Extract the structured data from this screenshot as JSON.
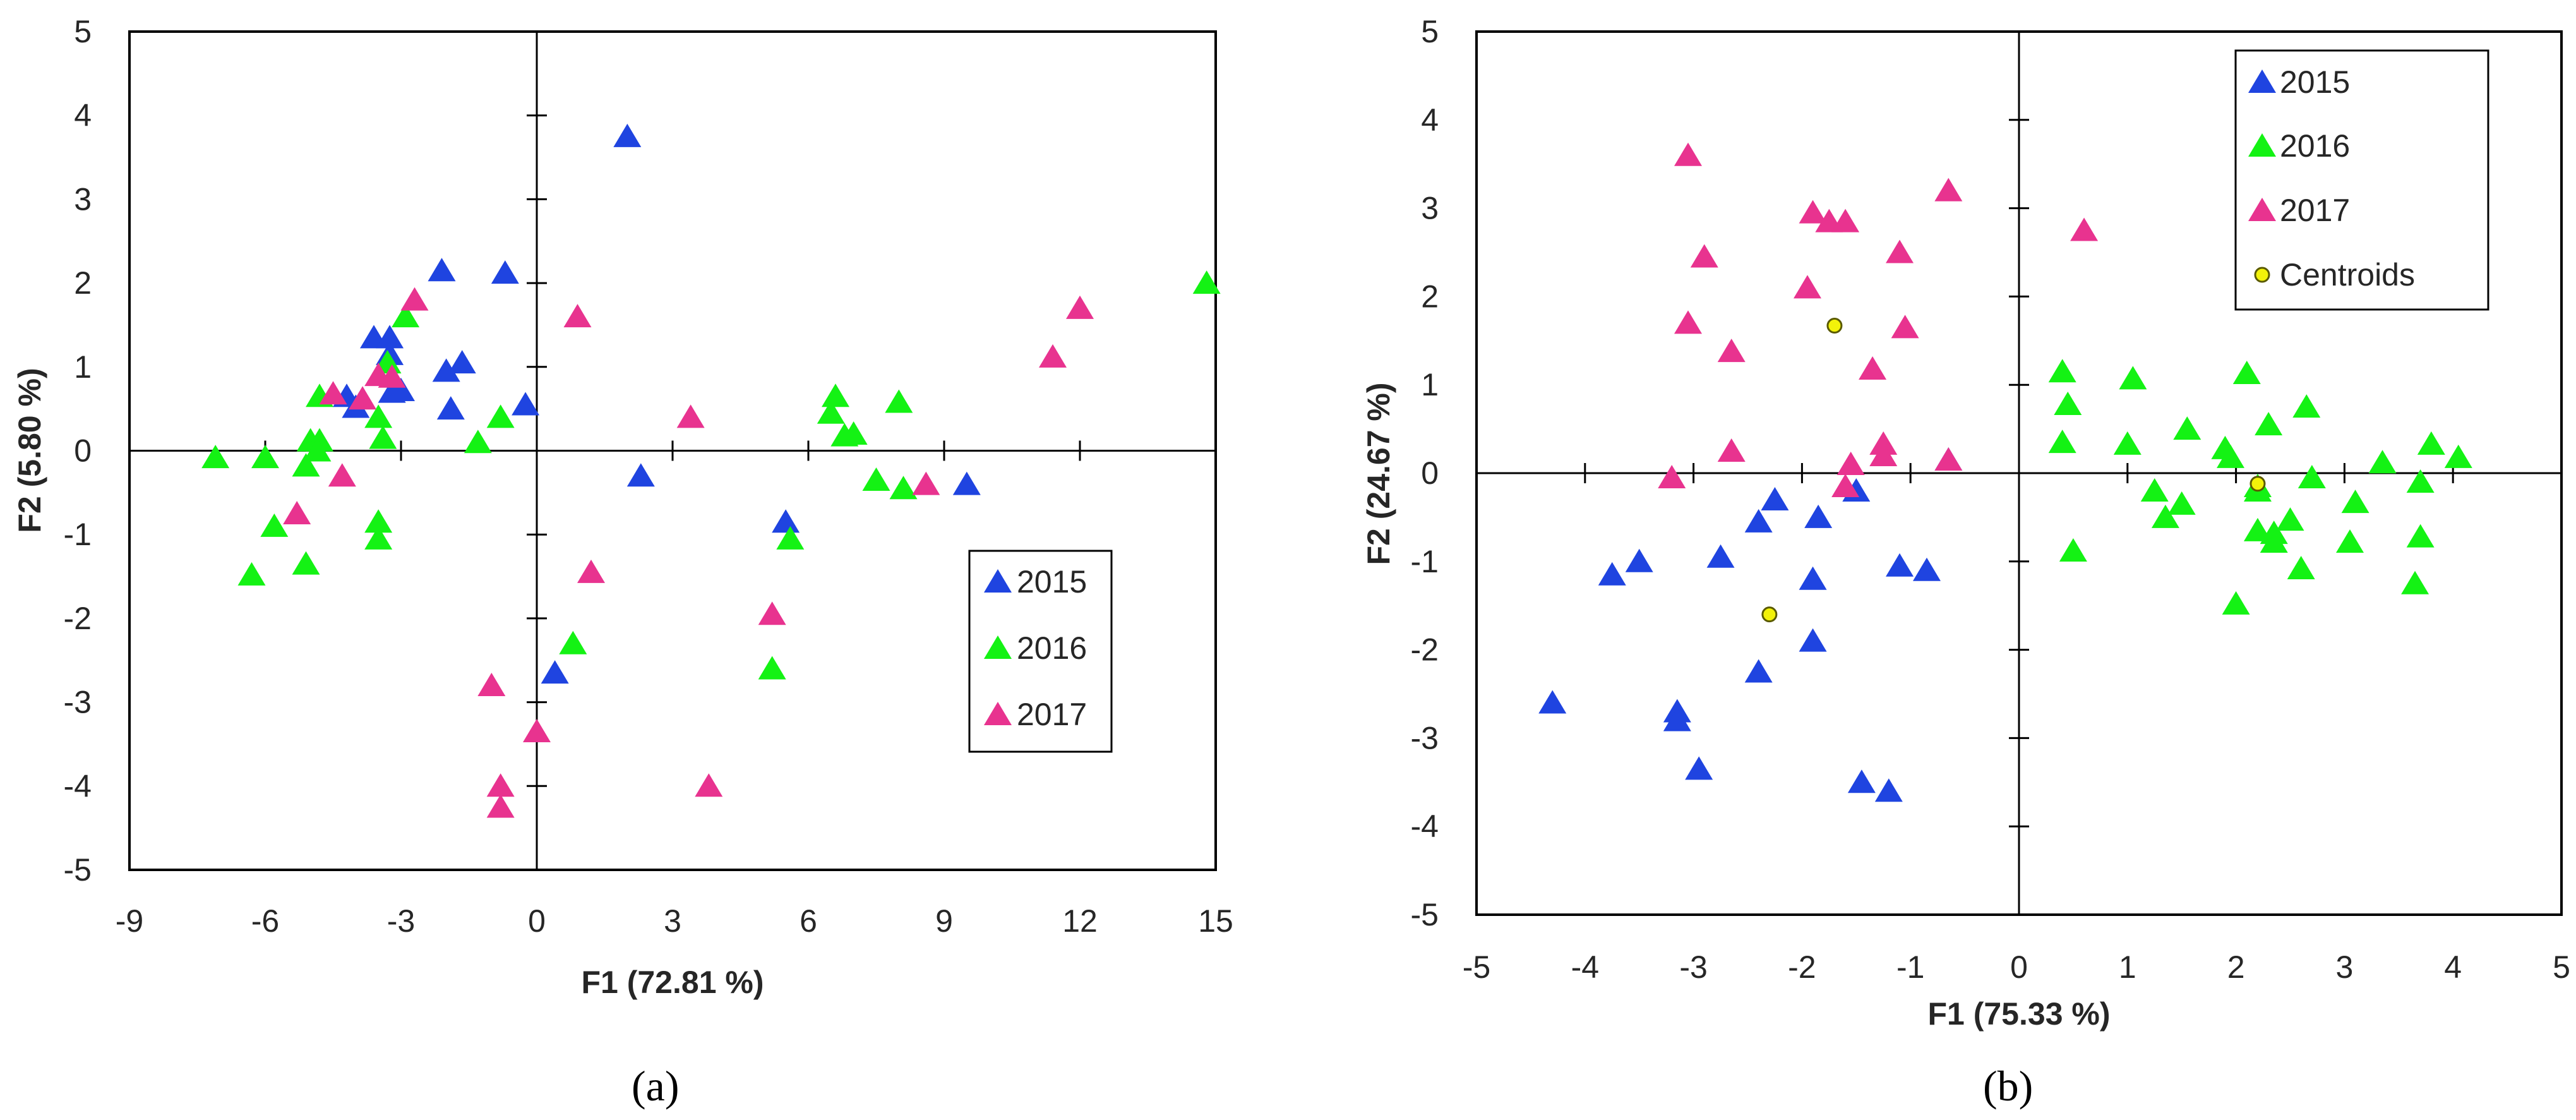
{
  "colors": {
    "2015": "#1f44e0",
    "2016": "#14f214",
    "2017": "#e8338f",
    "centroid_fill": "#f2f20a",
    "centroid_stroke": "#5a5a00"
  },
  "chart_data": [
    {
      "type": "scatter",
      "panel_label": "(a)",
      "xlabel": "F1 (72.81 %)",
      "ylabel": "F2 (5.80 %)",
      "xlim": [
        -9,
        15
      ],
      "ylim": [
        -5,
        5
      ],
      "xticks": [
        -9,
        -6,
        -3,
        0,
        3,
        6,
        9,
        12,
        15
      ],
      "yticks": [
        -5,
        -4,
        -3,
        -2,
        -1,
        0,
        1,
        2,
        3,
        4,
        5
      ],
      "legend_position": "bottom-right",
      "series": [
        {
          "name": "2015",
          "color_key": "2015",
          "marker": "triangle",
          "points": [
            [
              2.0,
              3.75
            ],
            [
              -2.1,
              2.15
            ],
            [
              -0.7,
              2.12
            ],
            [
              -3.6,
              1.35
            ],
            [
              -3.25,
              1.35
            ],
            [
              -3.25,
              1.15
            ],
            [
              -1.65,
              1.05
            ],
            [
              -2.0,
              0.95
            ],
            [
              -3.2,
              0.7
            ],
            [
              -3.0,
              0.72
            ],
            [
              -4.2,
              0.65
            ],
            [
              -4.0,
              0.52
            ],
            [
              -1.9,
              0.5
            ],
            [
              -0.25,
              0.55
            ],
            [
              2.3,
              -0.3
            ],
            [
              9.5,
              -0.4
            ],
            [
              5.5,
              -0.85
            ],
            [
              0.4,
              -2.65
            ]
          ]
        },
        {
          "name": "2016",
          "color_key": "2016",
          "marker": "triangle",
          "points": [
            [
              14.8,
              2.0
            ],
            [
              -2.9,
              1.6
            ],
            [
              -3.3,
              1.05
            ],
            [
              -4.8,
              0.65
            ],
            [
              -3.5,
              0.4
            ],
            [
              -0.8,
              0.4
            ],
            [
              -5.0,
              0.12
            ],
            [
              -4.8,
              0.12
            ],
            [
              -3.4,
              0.15
            ],
            [
              -1.3,
              0.1
            ],
            [
              -4.85,
              0.0
            ],
            [
              -7.1,
              -0.08
            ],
            [
              -6.0,
              -0.08
            ],
            [
              -5.1,
              -0.18
            ],
            [
              6.6,
              0.65
            ],
            [
              6.5,
              0.45
            ],
            [
              8.0,
              0.58
            ],
            [
              6.8,
              0.18
            ],
            [
              7.0,
              0.2
            ],
            [
              7.5,
              -0.35
            ],
            [
              8.1,
              -0.45
            ],
            [
              -5.8,
              -0.9
            ],
            [
              -3.5,
              -0.85
            ],
            [
              -3.5,
              -1.05
            ],
            [
              -5.1,
              -1.35
            ],
            [
              -6.3,
              -1.48
            ],
            [
              5.6,
              -1.05
            ],
            [
              0.8,
              -2.3
            ],
            [
              5.2,
              -2.6
            ]
          ]
        },
        {
          "name": "2017",
          "color_key": "2017",
          "marker": "triangle",
          "points": [
            [
              12.0,
              1.7
            ],
            [
              11.4,
              1.12
            ],
            [
              -2.7,
              1.8
            ],
            [
              0.9,
              1.6
            ],
            [
              -3.5,
              0.9
            ],
            [
              -3.2,
              0.88
            ],
            [
              -4.5,
              0.68
            ],
            [
              -3.85,
              0.62
            ],
            [
              3.4,
              0.4
            ],
            [
              -4.3,
              -0.3
            ],
            [
              8.6,
              -0.4
            ],
            [
              -5.3,
              -0.75
            ],
            [
              1.2,
              -1.45
            ],
            [
              5.2,
              -1.95
            ],
            [
              -1.0,
              -2.8
            ],
            [
              0.0,
              -3.35
            ],
            [
              -0.8,
              -4.0
            ],
            [
              3.8,
              -4.0
            ],
            [
              -0.8,
              -4.25
            ]
          ]
        }
      ]
    },
    {
      "type": "scatter",
      "panel_label": "(b)",
      "xlabel": "F1 (75.33 %)",
      "ylabel": "F2 (24.67 %)",
      "xlim": [
        -5,
        5
      ],
      "ylim": [
        -5,
        5
      ],
      "xticks": [
        -5,
        -4,
        -3,
        -2,
        -1,
        0,
        1,
        2,
        3,
        4,
        5
      ],
      "yticks": [
        -5,
        -4,
        -3,
        -2,
        -1,
        0,
        1,
        2,
        3,
        4,
        5
      ],
      "legend_position": "top-right",
      "series": [
        {
          "name": "2015",
          "color_key": "2015",
          "marker": "triangle",
          "points": [
            [
              -0.65,
              0.15
            ],
            [
              -1.5,
              -0.2
            ],
            [
              -2.25,
              -0.3
            ],
            [
              -2.4,
              -0.55
            ],
            [
              -1.85,
              -0.5
            ],
            [
              -2.75,
              -0.95
            ],
            [
              -3.5,
              -1.0
            ],
            [
              -3.75,
              -1.15
            ],
            [
              -1.1,
              -1.05
            ],
            [
              -0.85,
              -1.1
            ],
            [
              -1.9,
              -1.2
            ],
            [
              -1.9,
              -1.9
            ],
            [
              -2.4,
              -2.25
            ],
            [
              -4.3,
              -2.6
            ],
            [
              -3.15,
              -2.7
            ],
            [
              -3.15,
              -2.8
            ],
            [
              -2.95,
              -3.35
            ],
            [
              -1.45,
              -3.5
            ],
            [
              -1.2,
              -3.6
            ]
          ]
        },
        {
          "name": "2016",
          "color_key": "2016",
          "marker": "triangle",
          "points": [
            [
              0.4,
              1.15
            ],
            [
              0.45,
              0.78
            ],
            [
              0.4,
              0.35
            ],
            [
              1.05,
              1.07
            ],
            [
              1.0,
              0.33
            ],
            [
              2.1,
              1.13
            ],
            [
              1.55,
              0.5
            ],
            [
              2.3,
              0.55
            ],
            [
              2.65,
              0.75
            ],
            [
              1.9,
              0.28
            ],
            [
              1.95,
              0.18
            ],
            [
              3.8,
              0.33
            ],
            [
              4.05,
              0.18
            ],
            [
              3.35,
              0.12
            ],
            [
              2.7,
              -0.05
            ],
            [
              2.2,
              -0.15
            ],
            [
              3.7,
              -0.1
            ],
            [
              1.25,
              -0.2
            ],
            [
              2.2,
              -0.2
            ],
            [
              3.1,
              -0.33
            ],
            [
              1.5,
              -0.35
            ],
            [
              1.35,
              -0.5
            ],
            [
              2.5,
              -0.53
            ],
            [
              2.2,
              -0.65
            ],
            [
              2.35,
              -0.68
            ],
            [
              2.35,
              -0.78
            ],
            [
              3.05,
              -0.78
            ],
            [
              3.7,
              -0.72
            ],
            [
              0.5,
              -0.88
            ],
            [
              2.6,
              -1.08
            ],
            [
              3.65,
              -1.25
            ],
            [
              2.0,
              -1.48
            ]
          ]
        },
        {
          "name": "2017",
          "color_key": "2017",
          "marker": "triangle",
          "points": [
            [
              -3.05,
              3.6
            ],
            [
              -2.9,
              2.45
            ],
            [
              -1.9,
              2.95
            ],
            [
              -1.75,
              2.85
            ],
            [
              -1.6,
              2.85
            ],
            [
              -0.65,
              3.2
            ],
            [
              0.6,
              2.75
            ],
            [
              -1.1,
              2.5
            ],
            [
              -1.95,
              2.1
            ],
            [
              -3.05,
              1.7
            ],
            [
              -1.05,
              1.65
            ],
            [
              -2.65,
              1.38
            ],
            [
              -1.35,
              1.18
            ],
            [
              -2.65,
              0.25
            ],
            [
              -1.25,
              0.33
            ],
            [
              -1.25,
              0.2
            ],
            [
              -1.55,
              0.1
            ],
            [
              -0.65,
              0.15
            ],
            [
              -3.2,
              -0.05
            ],
            [
              -1.6,
              -0.15
            ]
          ]
        },
        {
          "name": "Centroids",
          "color_key": "centroid_fill",
          "marker": "circle",
          "points": [
            [
              -1.7,
              1.67
            ],
            [
              -2.3,
              -1.6
            ],
            [
              2.2,
              -0.12
            ]
          ]
        }
      ]
    }
  ]
}
